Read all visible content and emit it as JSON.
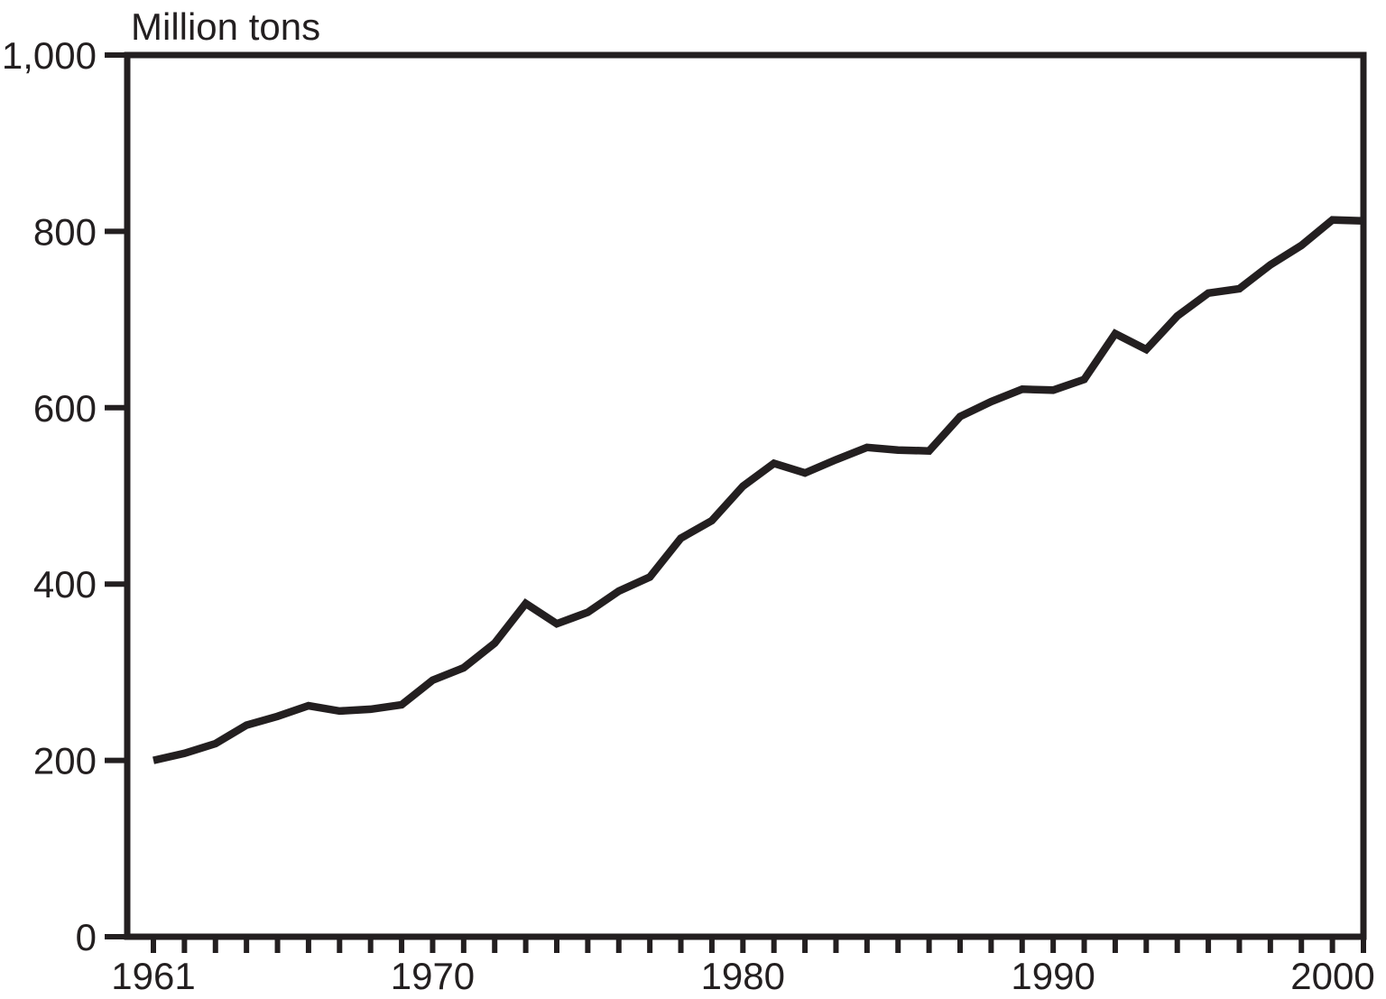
{
  "title": "Million tons",
  "colors": {
    "ink": "#231f20",
    "background": "#ffffff"
  },
  "chart_data": {
    "type": "line",
    "title": "Million tons",
    "xlabel": "",
    "ylabel": "Million tons",
    "x": [
      1961,
      1962,
      1963,
      1964,
      1965,
      1966,
      1967,
      1968,
      1969,
      1970,
      1971,
      1972,
      1973,
      1974,
      1975,
      1976,
      1977,
      1978,
      1979,
      1980,
      1981,
      1982,
      1983,
      1984,
      1985,
      1986,
      1987,
      1988,
      1989,
      1990,
      1991,
      1992,
      1993,
      1994,
      1995,
      1996,
      1997,
      1998,
      1999,
      2000
    ],
    "series": [
      {
        "name": "Million tons",
        "values": [
          200,
          208,
          219,
          240,
          250,
          262,
          256,
          258,
          263,
          291,
          305,
          333,
          378,
          355,
          368,
          392,
          408,
          452,
          472,
          511,
          537,
          526,
          541,
          555,
          552,
          551,
          590,
          607,
          621,
          620,
          632,
          684,
          666,
          704,
          730,
          735,
          762,
          784,
          813,
          812
        ]
      }
    ],
    "xlim": [
      1960.15,
      2000
    ],
    "ylim": [
      0,
      1000
    ],
    "yticks": [
      0,
      200,
      400,
      600,
      800,
      1000
    ],
    "ytick_labels": [
      "0",
      "200",
      "400",
      "600",
      "800",
      "1,000"
    ],
    "xticks_minor_every_year": true,
    "xticks_labeled": [
      1961,
      1970,
      1980,
      1990,
      2000
    ],
    "xtick_labels": [
      "1961",
      "1970",
      "1980",
      "1990",
      "2000"
    ],
    "grid": false,
    "legend": "none",
    "frame": "full-box"
  }
}
